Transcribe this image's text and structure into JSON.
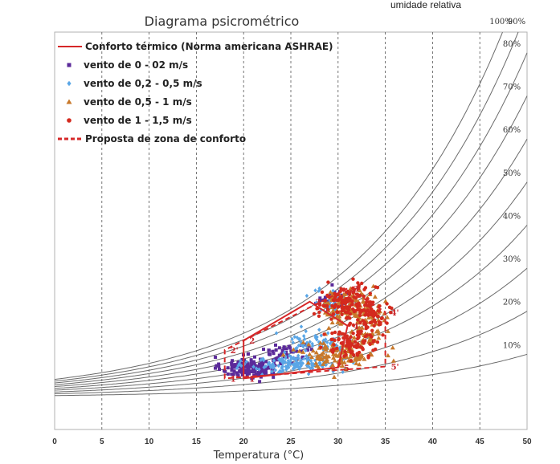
{
  "chart_data": {
    "type": "scatter",
    "title": "Diagrama psicrométrico",
    "xlabel": "Temperatura (°C)",
    "rh_title": "umidade relativa",
    "xlim": [
      0,
      50
    ],
    "x_ticks": [
      0,
      5,
      10,
      15,
      20,
      25,
      30,
      35,
      40,
      45,
      50
    ],
    "grid": "vertical dashed",
    "legend_position": "top-left",
    "rh_curves": [
      {
        "rh": 100,
        "label": "100%"
      },
      {
        "rh": 90,
        "label": "90%"
      },
      {
        "rh": 80,
        "label": "80%"
      },
      {
        "rh": 70,
        "label": "70%"
      },
      {
        "rh": 60,
        "label": "60%"
      },
      {
        "rh": 50,
        "label": "50%"
      },
      {
        "rh": 40,
        "label": "40%"
      },
      {
        "rh": 30,
        "label": "30%"
      },
      {
        "rh": 20,
        "label": "20%"
      },
      {
        "rh": 10,
        "label": "10%"
      }
    ],
    "legend": [
      {
        "label": "Conforto térmico (Norma americana ASHRAE)",
        "kind": "solid-line",
        "color": "#d62728"
      },
      {
        "label": "vento de 0 - 02 m/s",
        "kind": "square",
        "color": "#5b2a9a"
      },
      {
        "label": "vento de 0,2 - 0,5 m/s",
        "kind": "diamond",
        "color": "#5aa6e6"
      },
      {
        "label": "vento de 0,5 - 1 m/s",
        "kind": "triangle",
        "color": "#c8782a"
      },
      {
        "label": "vento de 1 - 1,5 m/s",
        "kind": "circle",
        "color": "#d42a1e"
      },
      {
        "label": "Proposta de zona de conforto",
        "kind": "dashed-line",
        "color": "#d62728"
      }
    ],
    "ashrae_zone": {
      "points": [
        {
          "label": "1",
          "t": 20,
          "w": 4.0
        },
        {
          "label": "2",
          "t": 20,
          "w": 12.0
        },
        {
          "label": "3",
          "t": 27,
          "w": 20.2
        },
        {
          "label": "4",
          "t": 31,
          "w": 15.1
        },
        {
          "label": "5",
          "t": 30,
          "w": 6.3
        }
      ]
    },
    "proposed_zone": {
      "points": [
        {
          "label": "1'",
          "t": 18,
          "w": 4.0
        },
        {
          "label": "2'",
          "t": 18,
          "w": 10.0
        },
        {
          "label": "3'",
          "t": 31,
          "w": 23.0
        },
        {
          "label": "4'",
          "t": 35,
          "w": 18.0
        },
        {
          "label": "5'",
          "t": 35,
          "w": 6.5
        }
      ]
    },
    "clusters": [
      {
        "series": 0,
        "n": 150,
        "cx": 20.5,
        "cy": 6.3,
        "sx": 1.8,
        "sy": 1.4
      },
      {
        "series": 0,
        "n": 50,
        "cx": 24.5,
        "cy": 9.5,
        "sx": 2.0,
        "sy": 1.6
      },
      {
        "series": 0,
        "n": 25,
        "cx": 29.5,
        "cy": 20.5,
        "sx": 1.2,
        "sy": 1.5
      },
      {
        "series": 1,
        "n": 140,
        "cx": 25.5,
        "cy": 7.0,
        "sx": 3.0,
        "sy": 1.2
      },
      {
        "series": 1,
        "n": 60,
        "cx": 28.0,
        "cy": 11.8,
        "sx": 2.2,
        "sy": 1.4
      },
      {
        "series": 1,
        "n": 50,
        "cx": 29.5,
        "cy": 20.0,
        "sx": 1.3,
        "sy": 1.7
      },
      {
        "series": 2,
        "n": 120,
        "cx": 30.0,
        "cy": 9.0,
        "sx": 2.5,
        "sy": 1.8
      },
      {
        "series": 2,
        "n": 130,
        "cx": 31.5,
        "cy": 19.0,
        "sx": 2.0,
        "sy": 2.2
      },
      {
        "series": 2,
        "n": 50,
        "cx": 33.0,
        "cy": 13.5,
        "sx": 1.0,
        "sy": 2.0
      },
      {
        "series": 3,
        "n": 100,
        "cx": 31.5,
        "cy": 11.5,
        "sx": 1.8,
        "sy": 2.0
      },
      {
        "series": 3,
        "n": 140,
        "cx": 31.0,
        "cy": 20.0,
        "sx": 2.0,
        "sy": 2.2
      },
      {
        "series": 3,
        "n": 50,
        "cx": 33.5,
        "cy": 16.5,
        "sx": 1.0,
        "sy": 2.0
      }
    ]
  }
}
